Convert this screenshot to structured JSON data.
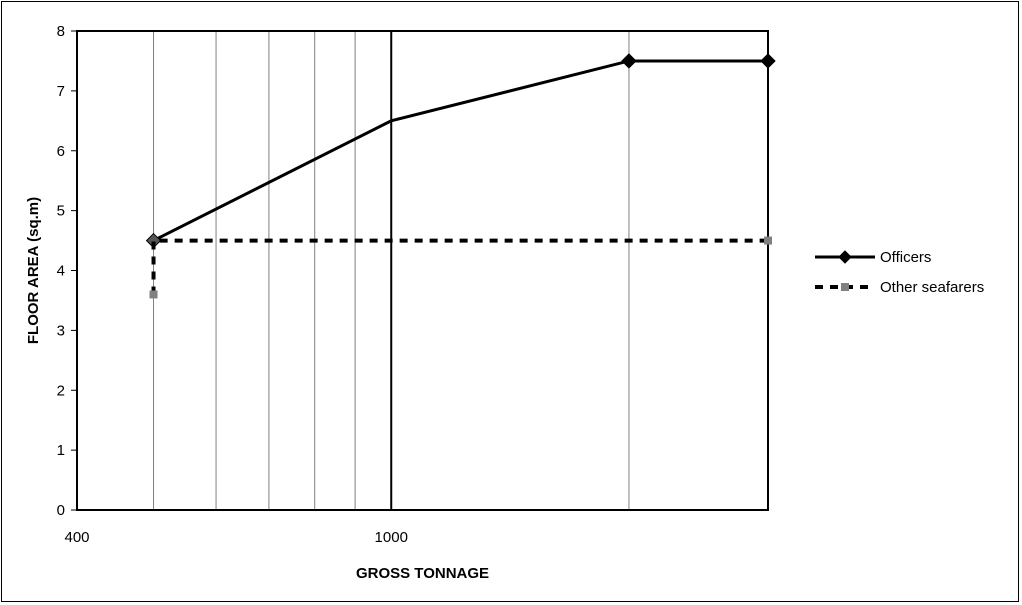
{
  "chart_data": {
    "type": "line",
    "title": "",
    "xlabel": "GROSS TONNAGE",
    "ylabel": "FLOOR AREA (sq.m)",
    "xlim": [
      400,
      3000
    ],
    "ylim": [
      0,
      8
    ],
    "x_scale": "log",
    "x_tick_labels": [
      {
        "value": 400,
        "label": "400"
      },
      {
        "value": 1000,
        "label": "1000"
      }
    ],
    "y_ticks": [
      0,
      1,
      2,
      3,
      4,
      5,
      6,
      7,
      8
    ],
    "grid": "vertical",
    "legend": "right",
    "series": [
      {
        "name": "Officers",
        "style": "solid",
        "color": "#000000",
        "marker": "diamond",
        "points": [
          [
            500,
            4.5
          ],
          [
            1000,
            6.5
          ],
          [
            2000,
            7.5
          ],
          [
            3000,
            7.5
          ]
        ],
        "markers_at": [
          [
            500,
            4.5
          ],
          [
            2000,
            7.5
          ],
          [
            3000,
            7.5
          ]
        ]
      },
      {
        "name": "Other seafarers",
        "style": "dashed",
        "color": "#000000",
        "marker": "square",
        "marker_color": "#808080",
        "points": [
          [
            500,
            3.6
          ],
          [
            500,
            4.5
          ],
          [
            3000,
            4.5
          ]
        ],
        "markers_at": [
          [
            500,
            3.6
          ],
          [
            3000,
            4.5
          ]
        ]
      }
    ]
  }
}
